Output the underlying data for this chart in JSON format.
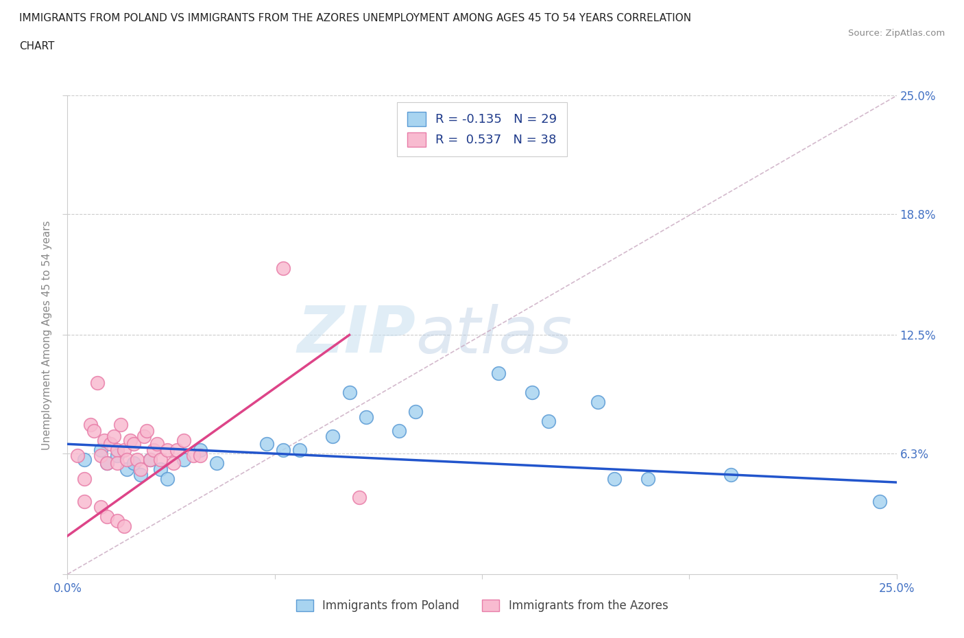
{
  "title_line1": "IMMIGRANTS FROM POLAND VS IMMIGRANTS FROM THE AZORES UNEMPLOYMENT AMONG AGES 45 TO 54 YEARS CORRELATION",
  "title_line2": "CHART",
  "source": "Source: ZipAtlas.com",
  "ylabel": "Unemployment Among Ages 45 to 54 years",
  "xlim": [
    0.0,
    0.25
  ],
  "ylim": [
    0.0,
    0.25
  ],
  "poland_color": "#A8D4F0",
  "azores_color": "#F8BBD0",
  "poland_edge_color": "#5B9BD5",
  "azores_edge_color": "#E87DA8",
  "poland_line_color": "#2255CC",
  "azores_line_color": "#DD4488",
  "diagonal_color": "#C9A8C0",
  "watermark_zip": "ZIP",
  "watermark_atlas": "atlas",
  "legend_R_poland": "R = -0.135",
  "legend_N_poland": "N = 29",
  "legend_R_azores": "R =  0.537",
  "legend_N_azores": "N = 38",
  "poland_line_x": [
    0.0,
    0.25
  ],
  "poland_line_y": [
    0.068,
    0.048
  ],
  "azores_line_x": [
    0.0,
    0.085
  ],
  "azores_line_y": [
    0.02,
    0.125
  ],
  "poland_scatter": [
    [
      0.005,
      0.06
    ],
    [
      0.01,
      0.065
    ],
    [
      0.012,
      0.058
    ],
    [
      0.015,
      0.062
    ],
    [
      0.018,
      0.055
    ],
    [
      0.02,
      0.058
    ],
    [
      0.022,
      0.052
    ],
    [
      0.025,
      0.06
    ],
    [
      0.028,
      0.055
    ],
    [
      0.03,
      0.05
    ],
    [
      0.035,
      0.06
    ],
    [
      0.04,
      0.065
    ],
    [
      0.045,
      0.058
    ],
    [
      0.06,
      0.068
    ],
    [
      0.065,
      0.065
    ],
    [
      0.07,
      0.065
    ],
    [
      0.08,
      0.072
    ],
    [
      0.085,
      0.095
    ],
    [
      0.09,
      0.082
    ],
    [
      0.1,
      0.075
    ],
    [
      0.105,
      0.085
    ],
    [
      0.13,
      0.105
    ],
    [
      0.14,
      0.095
    ],
    [
      0.145,
      0.08
    ],
    [
      0.16,
      0.09
    ],
    [
      0.165,
      0.05
    ],
    [
      0.175,
      0.05
    ],
    [
      0.2,
      0.052
    ],
    [
      0.245,
      0.038
    ]
  ],
  "azores_scatter": [
    [
      0.003,
      0.062
    ],
    [
      0.005,
      0.05
    ],
    [
      0.007,
      0.078
    ],
    [
      0.008,
      0.075
    ],
    [
      0.009,
      0.1
    ],
    [
      0.01,
      0.062
    ],
    [
      0.011,
      0.07
    ],
    [
      0.012,
      0.058
    ],
    [
      0.013,
      0.068
    ],
    [
      0.014,
      0.072
    ],
    [
      0.015,
      0.065
    ],
    [
      0.015,
      0.058
    ],
    [
      0.016,
      0.078
    ],
    [
      0.017,
      0.065
    ],
    [
      0.018,
      0.06
    ],
    [
      0.019,
      0.07
    ],
    [
      0.02,
      0.068
    ],
    [
      0.021,
      0.06
    ],
    [
      0.022,
      0.055
    ],
    [
      0.023,
      0.072
    ],
    [
      0.024,
      0.075
    ],
    [
      0.025,
      0.06
    ],
    [
      0.026,
      0.065
    ],
    [
      0.027,
      0.068
    ],
    [
      0.028,
      0.06
    ],
    [
      0.03,
      0.065
    ],
    [
      0.032,
      0.058
    ],
    [
      0.033,
      0.065
    ],
    [
      0.035,
      0.07
    ],
    [
      0.038,
      0.062
    ],
    [
      0.04,
      0.062
    ],
    [
      0.005,
      0.038
    ],
    [
      0.01,
      0.035
    ],
    [
      0.012,
      0.03
    ],
    [
      0.015,
      0.028
    ],
    [
      0.017,
      0.025
    ],
    [
      0.065,
      0.16
    ],
    [
      0.088,
      0.04
    ]
  ]
}
